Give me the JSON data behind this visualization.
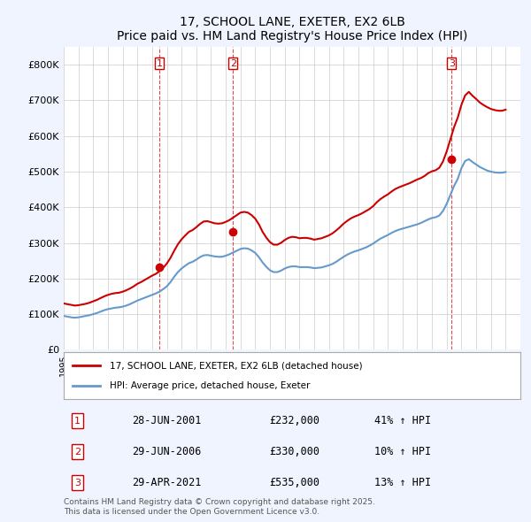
{
  "title": "17, SCHOOL LANE, EXETER, EX2 6LB",
  "subtitle": "Price paid vs. HM Land Registry's House Price Index (HPI)",
  "ylabel": "",
  "ylim": [
    0,
    850000
  ],
  "yticks": [
    0,
    100000,
    200000,
    300000,
    400000,
    500000,
    600000,
    700000,
    800000
  ],
  "ytick_labels": [
    "£0",
    "£100K",
    "£200K",
    "£300K",
    "£400K",
    "£500K",
    "£600K",
    "£700K",
    "£800K"
  ],
  "xlim_start": 1995.0,
  "xlim_end": 2026.0,
  "background_color": "#f0f4ff",
  "plot_bg_color": "#ffffff",
  "grid_color": "#cccccc",
  "red_color": "#cc0000",
  "blue_color": "#6699cc",
  "sale_dates": [
    2001.49,
    2006.49,
    2021.33
  ],
  "sale_prices": [
    232000,
    330000,
    535000
  ],
  "sale_labels": [
    "1",
    "2",
    "3"
  ],
  "vline_color": "#cc0000",
  "legend_entries": [
    "17, SCHOOL LANE, EXETER, EX2 6LB (detached house)",
    "HPI: Average price, detached house, Exeter"
  ],
  "table_rows": [
    {
      "label": "1",
      "date": "28-JUN-2001",
      "price": "£232,000",
      "change": "41% ↑ HPI"
    },
    {
      "label": "2",
      "date": "29-JUN-2006",
      "price": "£330,000",
      "change": "10% ↑ HPI"
    },
    {
      "label": "3",
      "date": "29-APR-2021",
      "price": "£535,000",
      "change": "13% ↑ HPI"
    }
  ],
  "footer": "Contains HM Land Registry data © Crown copyright and database right 2025.\nThis data is licensed under the Open Government Licence v3.0.",
  "hpi_years": [
    1995.0,
    1995.25,
    1995.5,
    1995.75,
    1996.0,
    1996.25,
    1996.5,
    1996.75,
    1997.0,
    1997.25,
    1997.5,
    1997.75,
    1998.0,
    1998.25,
    1998.5,
    1998.75,
    1999.0,
    1999.25,
    1999.5,
    1999.75,
    2000.0,
    2000.25,
    2000.5,
    2000.75,
    2001.0,
    2001.25,
    2001.5,
    2001.75,
    2002.0,
    2002.25,
    2002.5,
    2002.75,
    2003.0,
    2003.25,
    2003.5,
    2003.75,
    2004.0,
    2004.25,
    2004.5,
    2004.75,
    2005.0,
    2005.25,
    2005.5,
    2005.75,
    2006.0,
    2006.25,
    2006.5,
    2006.75,
    2007.0,
    2007.25,
    2007.5,
    2007.75,
    2008.0,
    2008.25,
    2008.5,
    2008.75,
    2009.0,
    2009.25,
    2009.5,
    2009.75,
    2010.0,
    2010.25,
    2010.5,
    2010.75,
    2011.0,
    2011.25,
    2011.5,
    2011.75,
    2012.0,
    2012.25,
    2012.5,
    2012.75,
    2013.0,
    2013.25,
    2013.5,
    2013.75,
    2014.0,
    2014.25,
    2014.5,
    2014.75,
    2015.0,
    2015.25,
    2015.5,
    2015.75,
    2016.0,
    2016.25,
    2016.5,
    2016.75,
    2017.0,
    2017.25,
    2017.5,
    2017.75,
    2018.0,
    2018.25,
    2018.5,
    2018.75,
    2019.0,
    2019.25,
    2019.5,
    2019.75,
    2020.0,
    2020.25,
    2020.5,
    2020.75,
    2021.0,
    2021.25,
    2021.5,
    2021.75,
    2022.0,
    2022.25,
    2022.5,
    2022.75,
    2023.0,
    2023.25,
    2023.5,
    2023.75,
    2024.0,
    2024.25,
    2024.5,
    2024.75,
    2025.0
  ],
  "hpi_values": [
    95000,
    93000,
    91000,
    90000,
    91000,
    93000,
    95000,
    97000,
    100000,
    103000,
    107000,
    111000,
    114000,
    116000,
    118000,
    119000,
    121000,
    124000,
    128000,
    133000,
    138000,
    142000,
    146000,
    150000,
    154000,
    158000,
    163000,
    170000,
    178000,
    190000,
    205000,
    218000,
    228000,
    236000,
    243000,
    247000,
    253000,
    260000,
    265000,
    266000,
    264000,
    262000,
    261000,
    261000,
    264000,
    268000,
    273000,
    278000,
    283000,
    285000,
    284000,
    279000,
    272000,
    260000,
    245000,
    233000,
    223000,
    218000,
    218000,
    222000,
    228000,
    232000,
    234000,
    234000,
    232000,
    232000,
    232000,
    231000,
    229000,
    230000,
    231000,
    234000,
    237000,
    241000,
    247000,
    254000,
    261000,
    267000,
    272000,
    276000,
    279000,
    283000,
    287000,
    292000,
    298000,
    305000,
    312000,
    317000,
    322000,
    328000,
    333000,
    337000,
    340000,
    343000,
    346000,
    349000,
    352000,
    356000,
    361000,
    366000,
    370000,
    372000,
    377000,
    390000,
    410000,
    435000,
    460000,
    480000,
    510000,
    530000,
    535000,
    527000,
    520000,
    513000,
    508000,
    503000,
    500000,
    498000,
    497000,
    497000,
    499000
  ],
  "red_years": [
    1995.0,
    1995.25,
    1995.5,
    1995.75,
    1996.0,
    1996.25,
    1996.5,
    1996.75,
    1997.0,
    1997.25,
    1997.5,
    1997.75,
    1998.0,
    1998.25,
    1998.5,
    1998.75,
    1999.0,
    1999.25,
    1999.5,
    1999.75,
    2000.0,
    2000.25,
    2000.5,
    2000.75,
    2001.0,
    2001.25,
    2001.5,
    2001.75,
    2002.0,
    2002.25,
    2002.5,
    2002.75,
    2003.0,
    2003.25,
    2003.5,
    2003.75,
    2004.0,
    2004.25,
    2004.5,
    2004.75,
    2005.0,
    2005.25,
    2005.5,
    2005.75,
    2006.0,
    2006.25,
    2006.5,
    2006.75,
    2007.0,
    2007.25,
    2007.5,
    2007.75,
    2008.0,
    2008.25,
    2008.5,
    2008.75,
    2009.0,
    2009.25,
    2009.5,
    2009.75,
    2010.0,
    2010.25,
    2010.5,
    2010.75,
    2011.0,
    2011.25,
    2011.5,
    2011.75,
    2012.0,
    2012.25,
    2012.5,
    2012.75,
    2013.0,
    2013.25,
    2013.5,
    2013.75,
    2014.0,
    2014.25,
    2014.5,
    2014.75,
    2015.0,
    2015.25,
    2015.5,
    2015.75,
    2016.0,
    2016.25,
    2016.5,
    2016.75,
    2017.0,
    2017.25,
    2017.5,
    2017.75,
    2018.0,
    2018.25,
    2018.5,
    2018.75,
    2019.0,
    2019.25,
    2019.5,
    2019.75,
    2020.0,
    2020.25,
    2020.5,
    2020.75,
    2021.0,
    2021.25,
    2021.5,
    2021.75,
    2022.0,
    2022.25,
    2022.5,
    2022.75,
    2023.0,
    2023.25,
    2023.5,
    2023.75,
    2024.0,
    2024.25,
    2024.5,
    2024.75,
    2025.0
  ],
  "red_values": [
    130000,
    128000,
    126000,
    124000,
    125000,
    127000,
    129000,
    132000,
    136000,
    140000,
    145000,
    150000,
    154000,
    157000,
    159000,
    160000,
    163000,
    167000,
    172000,
    178000,
    185000,
    190000,
    196000,
    202000,
    208000,
    213000,
    220000,
    230000,
    242000,
    258000,
    278000,
    296000,
    310000,
    321000,
    331000,
    336000,
    344000,
    353000,
    360000,
    361000,
    358000,
    355000,
    354000,
    355000,
    359000,
    364000,
    371000,
    378000,
    385000,
    387000,
    385000,
    378000,
    368000,
    352000,
    331000,
    315000,
    302000,
    295000,
    295000,
    300000,
    308000,
    314000,
    317000,
    316000,
    313000,
    314000,
    314000,
    312000,
    309000,
    311000,
    313000,
    317000,
    321000,
    327000,
    335000,
    344000,
    354000,
    362000,
    369000,
    374000,
    378000,
    383000,
    389000,
    395000,
    403000,
    414000,
    423000,
    430000,
    436000,
    444000,
    451000,
    456000,
    460000,
    464000,
    468000,
    473000,
    478000,
    482000,
    488000,
    496000,
    501000,
    504000,
    511000,
    529000,
    557000,
    591000,
    625000,
    652000,
    688000,
    714000,
    724000,
    713000,
    704000,
    694000,
    687000,
    681000,
    676000,
    673000,
    671000,
    671000,
    674000
  ]
}
